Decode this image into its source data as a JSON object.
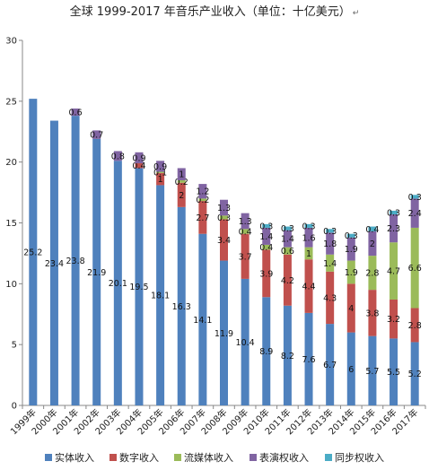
{
  "chart_data": {
    "type": "bar",
    "stacked": true,
    "title": "全球 1999-2017 年音乐产业收入（单位：十亿美元）",
    "title_suffix": "↵",
    "categories": [
      "1999年",
      "2000年",
      "2001年",
      "2002年",
      "2003年",
      "2004年",
      "2005年",
      "2006年",
      "2007年",
      "2008年",
      "2009年",
      "2010年",
      "2011年",
      "2012年",
      "2013年",
      "2014年",
      "2015年",
      "2016年",
      "2017年"
    ],
    "ylim": [
      0,
      30
    ],
    "yticks": [
      0,
      5,
      10,
      15,
      20,
      25,
      30
    ],
    "grid": false,
    "legend_position": "bottom",
    "series": [
      {
        "name": "实体收入",
        "color": "#4f81bd",
        "values": [
          25.2,
          23.4,
          23.8,
          21.9,
          20.1,
          19.5,
          18.1,
          16.3,
          14.1,
          11.9,
          10.4,
          8.9,
          8.2,
          7.6,
          6.7,
          6,
          5.7,
          5.5,
          5.2
        ]
      },
      {
        "name": "数字收入",
        "color": "#c0504d",
        "values": [
          null,
          null,
          null,
          null,
          null,
          0.4,
          1,
          2,
          2.7,
          3.4,
          3.7,
          3.9,
          4.2,
          4.4,
          4.3,
          4,
          3.8,
          3.2,
          2.8
        ]
      },
      {
        "name": "流媒体收入",
        "color": "#9bbb59",
        "values": [
          null,
          null,
          null,
          null,
          null,
          null,
          0.1,
          0.2,
          0.2,
          0.3,
          0.4,
          0.4,
          0.6,
          1,
          1.4,
          1.9,
          2.8,
          4.7,
          6.6
        ]
      },
      {
        "name": "表演权收入",
        "color": "#8064a2",
        "values": [
          null,
          null,
          0.6,
          0.7,
          0.8,
          0.9,
          0.9,
          1,
          1.2,
          1.3,
          1.3,
          1.4,
          1.4,
          1.6,
          1.8,
          1.9,
          2,
          2.3,
          2.4
        ]
      },
      {
        "name": "同步权收入",
        "color": "#4bacc6",
        "values": [
          null,
          null,
          null,
          null,
          null,
          null,
          null,
          null,
          null,
          null,
          null,
          0.3,
          0.3,
          0.3,
          0.3,
          0.3,
          0.4,
          0.3,
          0.3
        ]
      }
    ]
  }
}
